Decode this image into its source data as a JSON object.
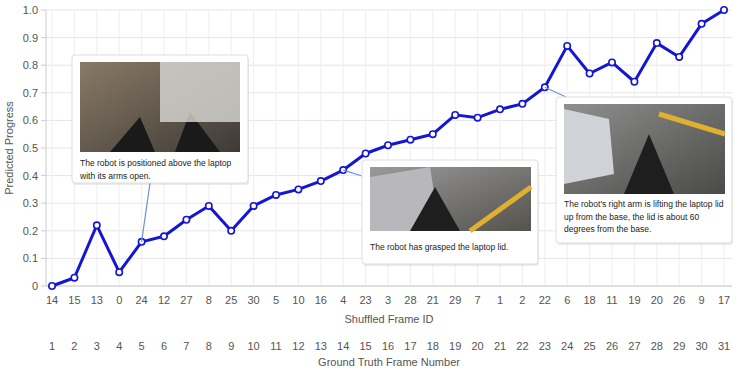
{
  "chart_data": {
    "type": "line",
    "x_label": "Ground Truth Frame Number",
    "category_label": "Shuffled Frame ID",
    "y_label": "Predicted Progress",
    "categories": [
      14,
      15,
      13,
      0,
      24,
      12,
      27,
      8,
      25,
      30,
      5,
      10,
      16,
      4,
      23,
      3,
      28,
      21,
      29,
      7,
      1,
      2,
      22,
      6,
      18,
      11,
      19,
      20,
      26,
      9,
      17
    ],
    "x": [
      1,
      2,
      3,
      4,
      5,
      6,
      7,
      8,
      9,
      10,
      11,
      12,
      13,
      14,
      15,
      16,
      17,
      18,
      19,
      20,
      21,
      22,
      23,
      24,
      25,
      26,
      27,
      28,
      29,
      30,
      31
    ],
    "values": [
      0,
      0.03,
      0.22,
      0.05,
      0.16,
      0.18,
      0.24,
      0.29,
      0.2,
      0.29,
      0.33,
      0.35,
      0.38,
      0.42,
      0.48,
      0.51,
      0.53,
      0.55,
      0.62,
      0.61,
      0.64,
      0.66,
      0.72,
      0.87,
      0.77,
      0.81,
      0.74,
      0.88,
      0.83,
      0.95,
      1.0
    ],
    "color": "#1515d6",
    "marker": "circle",
    "xlim": [
      1,
      31
    ],
    "xticks": [
      1,
      2,
      3,
      4,
      5,
      6,
      7,
      8,
      9,
      10,
      11,
      12,
      13,
      14,
      15,
      16,
      17,
      18,
      19,
      20,
      21,
      22,
      23,
      24,
      25,
      26,
      27,
      28,
      29,
      30,
      31
    ],
    "ylim": [
      0,
      1
    ],
    "yticks": [
      0,
      0.1,
      0.2,
      0.3,
      0.4,
      0.5,
      0.6,
      0.7,
      0.8,
      0.9,
      {
        "value": 1,
        "label": "1.0"
      }
    ],
    "grid": true,
    "annotations": [
      {
        "text": "The robot is positioned above the laptop with its arms open.",
        "x": 5
      },
      {
        "text": "The robot has grasped the laptop lid.",
        "x": 14
      },
      {
        "text": "The robot's right arm is lifting the laptop lid up from the base, the lid is about 60 degrees from the base.",
        "x": 23
      }
    ]
  }
}
